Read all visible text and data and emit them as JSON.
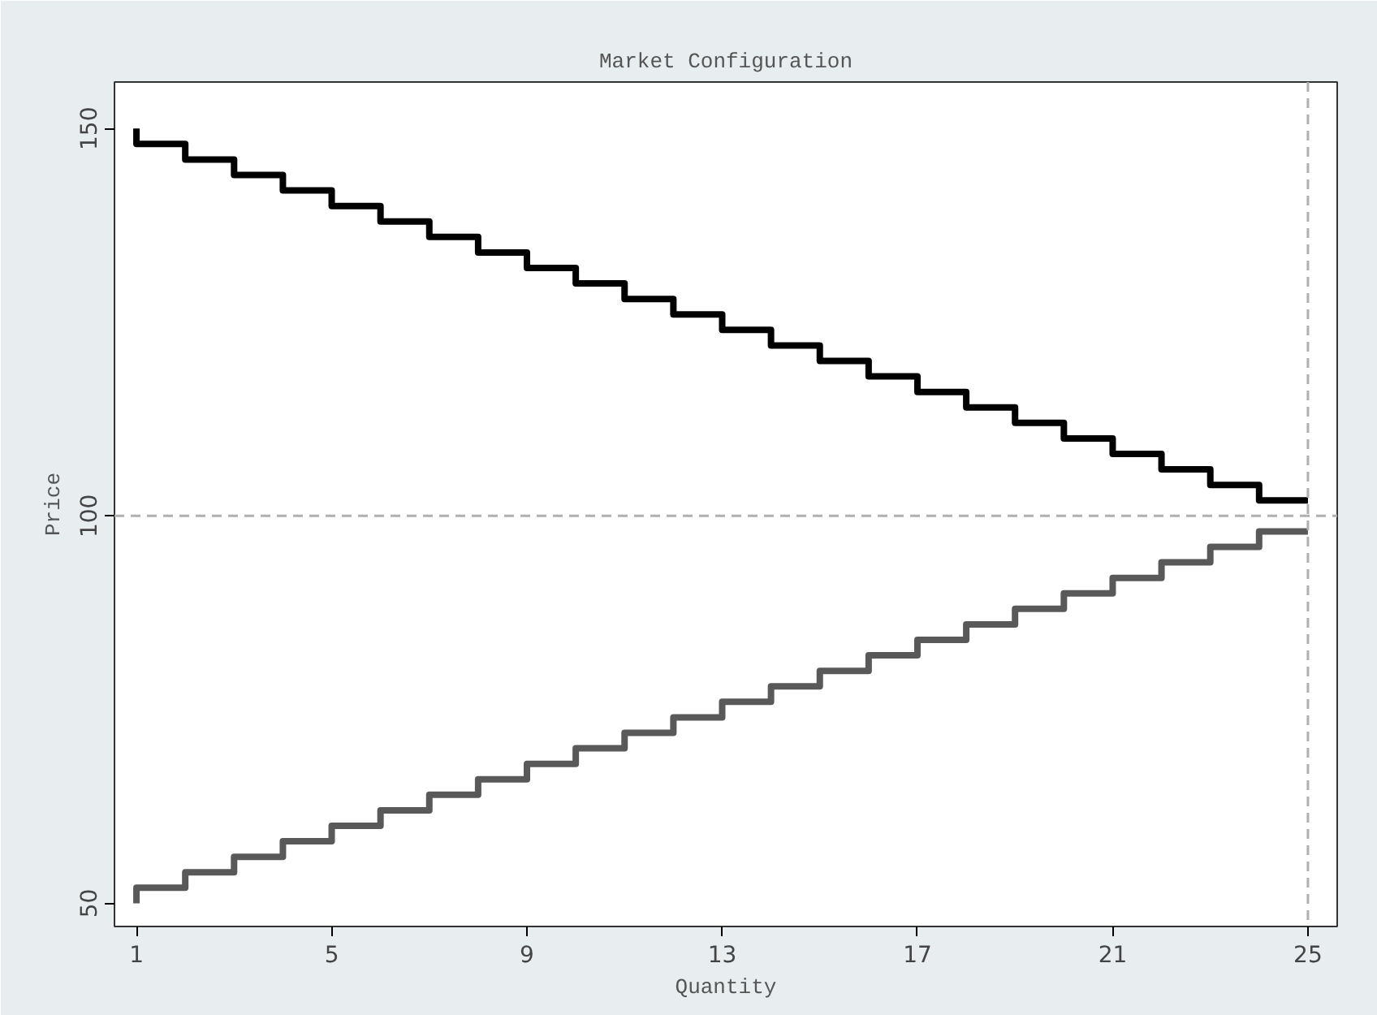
{
  "chart_data": {
    "type": "step",
    "title": "Market Configuration",
    "xlabel": "Quantity",
    "ylabel": "Price",
    "x": [
      1,
      2,
      3,
      4,
      5,
      6,
      7,
      8,
      9,
      10,
      11,
      12,
      13,
      14,
      15,
      16,
      17,
      18,
      19,
      20,
      21,
      22,
      23,
      24,
      25
    ],
    "series": [
      {
        "color": "#000000",
        "values": [
          150,
          148,
          146,
          144,
          142,
          140,
          138,
          136,
          134,
          132,
          130,
          128,
          126,
          124,
          122,
          120,
          118,
          116,
          114,
          112,
          110,
          108,
          106,
          104,
          102
        ]
      },
      {
        "color": "#595959",
        "values": [
          50,
          52,
          54,
          56,
          58,
          60,
          62,
          64,
          66,
          68,
          70,
          72,
          74,
          76,
          78,
          80,
          82,
          84,
          86,
          88,
          90,
          92,
          94,
          96,
          98
        ]
      }
    ],
    "xlim": [
      0.55,
      25.6
    ],
    "ylim": [
      47,
      156
    ],
    "xticks": [
      1,
      5,
      9,
      13,
      17,
      21,
      25
    ],
    "yticks": [
      50,
      100,
      150
    ],
    "ref_lines": [
      {
        "axis": "y",
        "value": 100,
        "color": "#b0b0b0",
        "line_style": "dashed"
      },
      {
        "axis": "x",
        "value": 25,
        "color": "#b0b0b0",
        "line_style": "dashed"
      }
    ],
    "grid": false
  }
}
